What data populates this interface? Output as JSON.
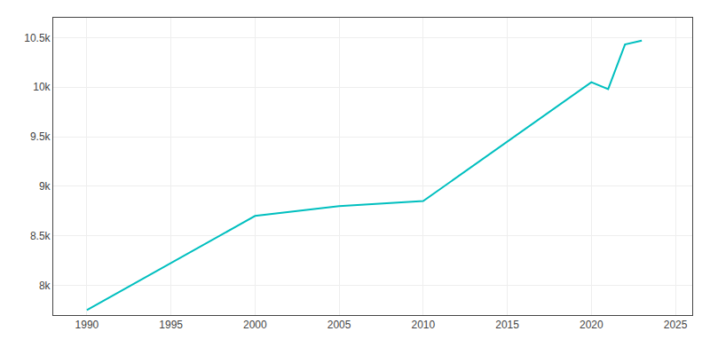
{
  "chart_data": {
    "type": "line",
    "x": [
      1990,
      2000,
      2005,
      2010,
      2020,
      2021,
      2022,
      2023
    ],
    "values": [
      7750,
      8700,
      8800,
      8850,
      10050,
      9980,
      10430,
      10470
    ],
    "color": "#00BFBF",
    "xlim": [
      1988,
      2026
    ],
    "ylim": [
      7700,
      10700
    ],
    "xticks": [
      1990,
      1995,
      2000,
      2005,
      2010,
      2015,
      2020,
      2025
    ],
    "yticks": [
      {
        "value": 8000,
        "label": "8k"
      },
      {
        "value": 8500,
        "label": "8.5k"
      },
      {
        "value": 9000,
        "label": "9k"
      },
      {
        "value": 9500,
        "label": "9.5k"
      },
      {
        "value": 10000,
        "label": "10k"
      },
      {
        "value": 10500,
        "label": "10.5k"
      }
    ],
    "grid": true
  }
}
